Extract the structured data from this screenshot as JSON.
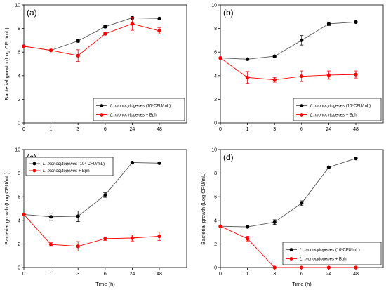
{
  "chart_data": [
    {
      "type": "line",
      "panel_label": "(a)",
      "ylabel": "Bacterial growth (Log CFU/mL)",
      "xlabel": "",
      "categories": [
        "0",
        "1",
        "3",
        "6",
        "24",
        "48"
      ],
      "ylim": [
        0,
        10
      ],
      "yticks": [
        0,
        2,
        4,
        6,
        8,
        10
      ],
      "legend_position": "bottom-right",
      "series": [
        {
          "name_italic": "L. monocytogenes",
          "name_suffix": " (10⁵CFU/mL)",
          "color": "#000000",
          "values": [
            6.5,
            6.15,
            6.95,
            8.15,
            8.9,
            8.85
          ],
          "errors": [
            0,
            0.05,
            0.1,
            0.1,
            0.1,
            0.05
          ]
        },
        {
          "name_italic": "L. monocytogenes",
          "name_suffix": " + Bph",
          "color": "#ff0000",
          "values": [
            6.5,
            6.15,
            5.7,
            7.55,
            8.4,
            7.8
          ],
          "errors": [
            0,
            0.05,
            0.5,
            0.1,
            0.55,
            0.25
          ]
        }
      ]
    },
    {
      "type": "line",
      "panel_label": "(b)",
      "ylabel": "",
      "xlabel": "",
      "categories": [
        "0",
        "1",
        "3",
        "6",
        "24",
        "48"
      ],
      "ylim": [
        0,
        10
      ],
      "yticks": [
        0,
        2,
        4,
        6,
        8,
        10
      ],
      "legend_position": "bottom-right",
      "series": [
        {
          "name_italic": "L. monocytogenes",
          "name_suffix": " (10⁵CFU/mL)",
          "color": "#000000",
          "values": [
            5.5,
            5.4,
            5.65,
            7.0,
            8.4,
            8.55
          ],
          "errors": [
            0,
            0.1,
            0.1,
            0.4,
            0.15,
            0.05
          ]
        },
        {
          "name_italic": "L. monocytogenes",
          "name_suffix": " + Bph",
          "color": "#ff0000",
          "values": [
            5.5,
            3.85,
            3.65,
            3.95,
            4.05,
            4.1
          ],
          "errors": [
            0,
            0.5,
            0.2,
            0.45,
            0.35,
            0.3
          ]
        }
      ]
    },
    {
      "type": "line",
      "panel_label": "(c)",
      "ylabel": "Bacterial growth (Log CFU/mL)",
      "xlabel": "Time (h)",
      "categories": [
        "0",
        "1",
        "3",
        "6",
        "24",
        "48"
      ],
      "ylim": [
        0,
        10
      ],
      "yticks": [
        0,
        2,
        4,
        6,
        8,
        10
      ],
      "legend_position": "top-left",
      "series": [
        {
          "name_italic": "L. monocytogenes",
          "name_suffix": " (10⁴ CFU/mL)",
          "color": "#000000",
          "values": [
            4.5,
            4.3,
            4.35,
            6.15,
            8.9,
            8.85
          ],
          "errors": [
            0,
            0.3,
            0.45,
            0.2,
            0.05,
            0.05
          ]
        },
        {
          "name_italic": "L. monocytogenes",
          "name_suffix": " + Bph",
          "color": "#ff0000",
          "values": [
            4.5,
            1.95,
            1.8,
            2.45,
            2.5,
            2.65
          ],
          "errors": [
            0,
            0.15,
            0.4,
            0.15,
            0.25,
            0.35
          ]
        }
      ]
    },
    {
      "type": "line",
      "panel_label": "(d)",
      "ylabel": "Bacterial growth (Log CFU/mL)",
      "xlabel": "Time (h)",
      "categories": [
        "0",
        "1",
        "3",
        "6",
        "24",
        "48"
      ],
      "ylim": [
        0,
        10
      ],
      "yticks": [
        0,
        2,
        4,
        6,
        8,
        10
      ],
      "legend_position": "bottom-right",
      "series": [
        {
          "name_italic": "L. monocytogenes",
          "name_suffix": " (10³CFU/mL)",
          "color": "#000000",
          "values": [
            3.5,
            3.45,
            3.85,
            5.45,
            8.5,
            9.25
          ],
          "errors": [
            0,
            0.1,
            0.2,
            0.2,
            0.05,
            0.05
          ]
        },
        {
          "name_italic": "L. monocytogenes",
          "name_suffix": " + Bph",
          "color": "#ff0000",
          "values": [
            3.5,
            2.45,
            0,
            0,
            0,
            0
          ],
          "errors": [
            0,
            0.2,
            0,
            0,
            0,
            0
          ]
        }
      ]
    }
  ]
}
